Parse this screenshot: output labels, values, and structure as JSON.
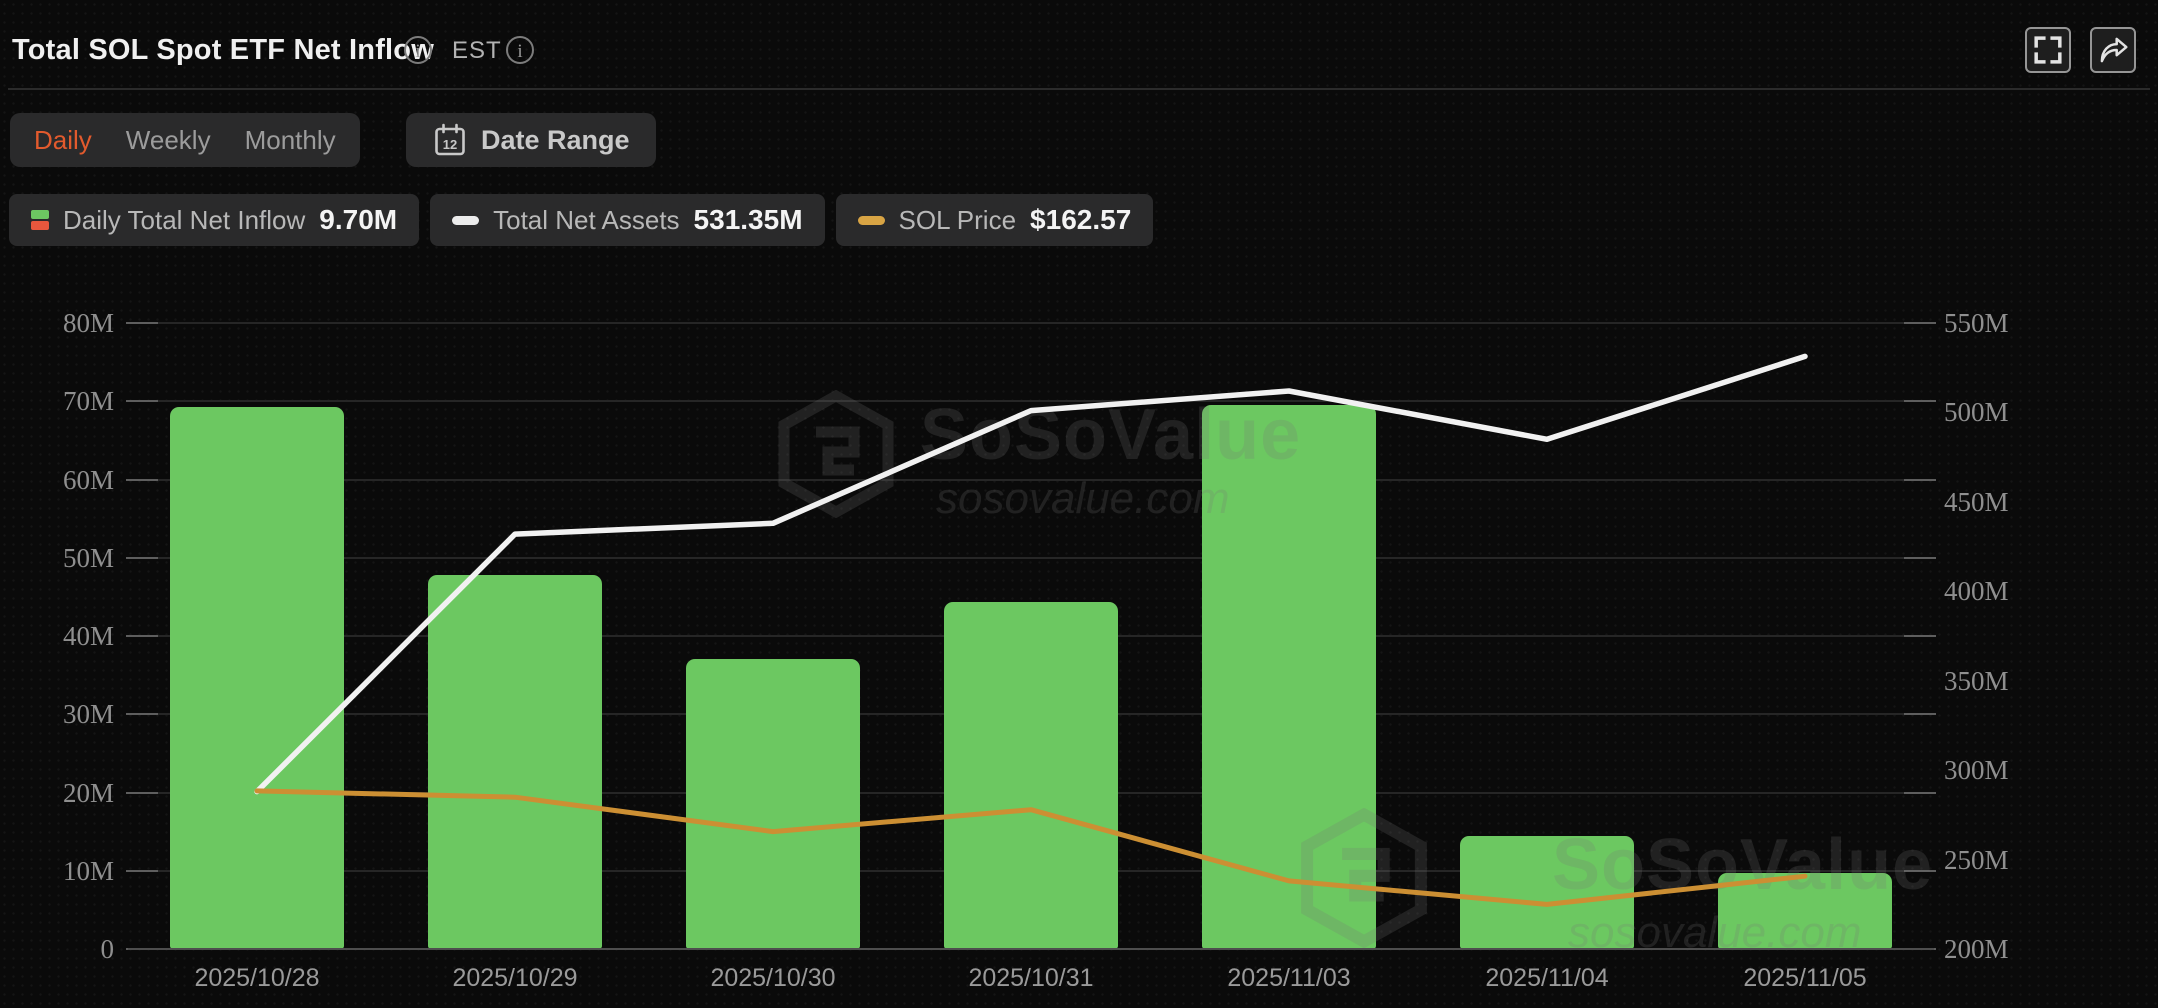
{
  "header": {
    "title": "Total SOL Spot ETF Net Inflow",
    "est_label": "EST"
  },
  "controls": {
    "tabs": [
      {
        "label": "Daily",
        "active": true
      },
      {
        "label": "Weekly",
        "active": false
      },
      {
        "label": "Monthly",
        "active": false
      }
    ],
    "date_range_label": "Date Range"
  },
  "legend": [
    {
      "label": "Daily Total Net Inflow",
      "value": "9.70M",
      "icon": "split-square"
    },
    {
      "label": "Total Net Assets",
      "value": "531.35M",
      "icon": "dash",
      "icon_color": "#ececec"
    },
    {
      "label": "SOL Price",
      "value": "$162.57",
      "icon": "dash",
      "icon_color": "#d8a444"
    }
  ],
  "watermark": {
    "brand": "SoSoValue",
    "domain": "sosovalue.com"
  },
  "colors": {
    "accent": "#e25a2d",
    "bar_green": "#6cc861",
    "negative_red": "#e8573d",
    "assets_line": "#f1f1f1",
    "price_line": "#cc8f33"
  },
  "chart_data": {
    "type": "bar+line",
    "categories": [
      "2025/10/28",
      "2025/10/29",
      "2025/10/30",
      "2025/10/31",
      "2025/11/03",
      "2025/11/04",
      "2025/11/05"
    ],
    "series": [
      {
        "name": "Daily Total Net Inflow",
        "type": "bar",
        "axis": "left",
        "unit": "M USD",
        "values": [
          69.3,
          47.8,
          37.0,
          44.3,
          69.5,
          14.5,
          9.7
        ],
        "color": "#6cc861"
      },
      {
        "name": "Total Net Assets",
        "type": "line",
        "axis": "right",
        "unit": "M USD",
        "values": [
          288,
          432,
          438,
          501,
          512,
          485,
          531.35
        ],
        "color": "#f1f1f1"
      },
      {
        "name": "SOL Price",
        "type": "line",
        "axis": "hidden",
        "unit": "USD",
        "latest_value_displayed": "$162.57",
        "plot_y_left_axis_units": [
          20.2,
          19.4,
          15.0,
          17.8,
          8.7,
          5.7,
          9.3
        ],
        "color": "#cc8f33"
      }
    ],
    "left_axis": {
      "min": 0,
      "max": 80,
      "step": 10,
      "tick_labels": [
        "0",
        "10M",
        "20M",
        "30M",
        "40M",
        "50M",
        "60M",
        "70M",
        "80M"
      ]
    },
    "right_axis": {
      "min": 200,
      "max": 550,
      "step": 50,
      "tick_labels": [
        "200M",
        "250M",
        "300M",
        "350M",
        "400M",
        "450M",
        "500M",
        "550M"
      ]
    },
    "grid": true,
    "legend_position": "top-left"
  }
}
